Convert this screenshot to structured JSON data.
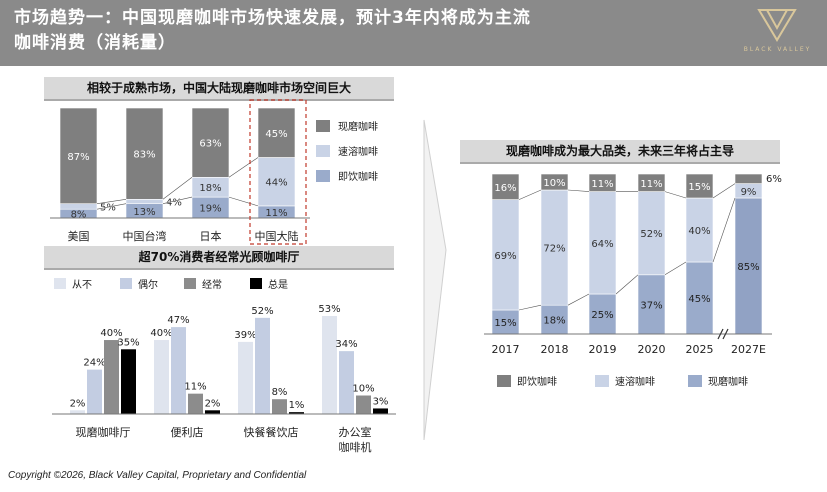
{
  "header": {
    "title_line1": "市场趋势一：中国现磨咖啡市场快速发展，预计3年内将成为主流",
    "title_line2": "咖啡消费（消耗量）",
    "logo_text": "BLACK VALLEY"
  },
  "footer": {
    "copyright": "Copyright ©2026, Black Valley Capital, Proprietary and Confidential"
  },
  "colors": {
    "fresh": "#7f7f7f",
    "instant": "#c9d3e6",
    "rtd": "#9aabcb",
    "never": "#dfe4ee",
    "occasional": "#c3cde2",
    "often": "#8c8c8c",
    "always": "#000000",
    "forecast": "#91a2c4",
    "highlight": "#c0392b"
  },
  "chart_data": [
    {
      "type": "bar",
      "stacked": true,
      "title": "相较于成熟市场，中国大陆现磨咖啡市场空间巨大",
      "categories": [
        "美国",
        "中国台湾",
        "日本",
        "中国大陆"
      ],
      "series": [
        {
          "name": "即饮咖啡",
          "values": [
            8,
            13,
            19,
            11
          ],
          "labels": [
            "8%",
            "13%",
            "19%",
            "11%"
          ]
        },
        {
          "name": "速溶咖啡",
          "values": [
            5,
            4,
            18,
            44
          ],
          "labels": [
            "5%",
            "4%",
            "18%",
            "44%"
          ]
        },
        {
          "name": "现磨咖啡",
          "values": [
            87,
            83,
            63,
            45
          ],
          "labels": [
            "87%",
            "83%",
            "63%",
            "45%"
          ]
        }
      ],
      "legend": [
        "现磨咖啡",
        "速溶咖啡",
        "即饮咖啡"
      ],
      "ylim": [
        0,
        100
      ],
      "highlight_category": "中国大陆"
    },
    {
      "type": "bar",
      "title": "超70%消费者经常光顾咖啡厅",
      "categories": [
        "现磨咖啡厅",
        "便利店",
        "快餐餐饮店",
        "办公室\n咖啡机"
      ],
      "series": [
        {
          "name": "从不",
          "values": [
            2,
            40,
            39,
            53
          ],
          "labels": [
            "2%",
            "40%",
            "39%",
            "53%"
          ]
        },
        {
          "name": "偶尔",
          "values": [
            24,
            47,
            52,
            34
          ],
          "labels": [
            "24%",
            "47%",
            "52%",
            "34%"
          ]
        },
        {
          "name": "经常",
          "values": [
            40,
            11,
            8,
            10
          ],
          "labels": [
            "40%",
            "11%",
            "8%",
            "10%"
          ]
        },
        {
          "name": "总是",
          "values": [
            35,
            2,
            1,
            3
          ],
          "labels": [
            "35%",
            "2%",
            "1%",
            "3%"
          ]
        }
      ],
      "ylim": [
        0,
        55
      ]
    },
    {
      "type": "bar",
      "stacked": true,
      "title": "现磨咖啡成为最大品类，未来三年将占主导",
      "categories": [
        "2017",
        "2018",
        "2019",
        "2020",
        "2025",
        "2027E"
      ],
      "series": [
        {
          "name": "现磨咖啡",
          "values": [
            15,
            18,
            25,
            37,
            45,
            85
          ],
          "labels": [
            "15%",
            "18%",
            "25%",
            "37%",
            "45%",
            "85%"
          ]
        },
        {
          "name": "速溶咖啡",
          "values": [
            69,
            72,
            64,
            52,
            40,
            9
          ],
          "labels": [
            "69%",
            "72%",
            "64%",
            "52%",
            "40%",
            "9%"
          ]
        },
        {
          "name": "即饮咖啡",
          "values": [
            16,
            10,
            11,
            11,
            15,
            6
          ],
          "labels": [
            "16%",
            "10%",
            "11%",
            "11%",
            "15%",
            "6%"
          ]
        }
      ],
      "legend": [
        "即饮咖啡",
        "速溶咖啡",
        "现磨咖啡"
      ],
      "ylim": [
        0,
        100
      ],
      "axis_break_before": "2027E"
    }
  ]
}
